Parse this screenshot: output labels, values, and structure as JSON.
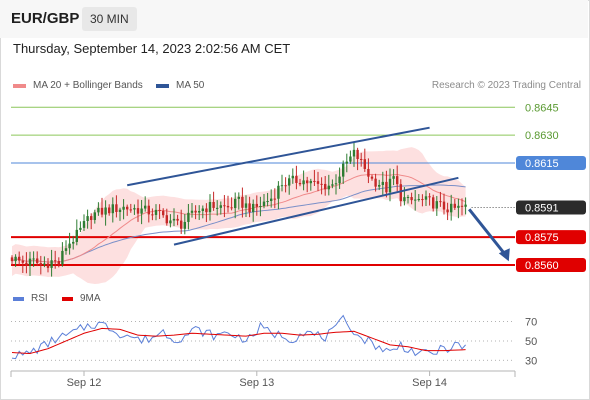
{
  "header": {
    "symbol": "EUR/GBP",
    "interval": "30 MIN"
  },
  "datetime": "Thursday, September 14, 2023 2:02:56 AM CET",
  "legend": {
    "ma20": {
      "label": "MA 20 + Bollinger Bands",
      "color": "#f08a8a"
    },
    "ma50": {
      "label": "MA 50",
      "color": "#2f5597"
    }
  },
  "credit": "Research © 2023 Trading Central",
  "rsi_legend": {
    "rsi": {
      "label": "RSI",
      "color": "#5b7fd8"
    },
    "ma": {
      "label": "9MA",
      "color": "#e00000"
    }
  },
  "colors": {
    "resistance": "#8cc65a",
    "pivot": "#4f87d9",
    "support": "#e00000",
    "channel": "#2f5597",
    "bull": "#2e7d32",
    "bear": "#c62828",
    "band": "#fde0e0"
  },
  "chart_data": [
    {
      "type": "candlestick",
      "x_ticks": [
        "Sep 12",
        "Sep 13",
        "Sep 14"
      ],
      "x_tick_index": [
        20,
        68,
        116
      ],
      "ylim": [
        0.8553,
        0.865
      ],
      "levels": [
        {
          "label": "0.8645",
          "value": 0.8645,
          "kind": "resistance"
        },
        {
          "label": "0.8630",
          "value": 0.863,
          "kind": "resistance"
        },
        {
          "label": "0.8615",
          "value": 0.8615,
          "kind": "pivot"
        },
        {
          "label": "0.8591",
          "value": 0.8591,
          "kind": "last"
        },
        {
          "label": "0.8575",
          "value": 0.8575,
          "kind": "support"
        },
        {
          "label": "0.8560",
          "value": 0.856,
          "kind": "support"
        }
      ],
      "last_price": 0.8591,
      "channel": {
        "upper": [
          [
            32,
            0.8603
          ],
          [
            116,
            0.8634
          ]
        ],
        "lower": [
          [
            45,
            0.8571
          ],
          [
            124,
            0.8607
          ]
        ]
      },
      "forecast_arrow": {
        "from": [
          127,
          0.859
        ],
        "to": [
          138,
          0.8562
        ]
      },
      "anchors": [
        [
          0,
          0.8564
        ],
        [
          2,
          0.8562
        ],
        [
          4,
          0.8561
        ],
        [
          6,
          0.8562
        ],
        [
          8,
          0.856
        ],
        [
          11,
          0.8562
        ],
        [
          13,
          0.8561
        ],
        [
          15,
          0.857
        ],
        [
          18,
          0.8576
        ],
        [
          22,
          0.8587
        ],
        [
          27,
          0.859
        ],
        [
          31,
          0.8591
        ],
        [
          35,
          0.859
        ],
        [
          40,
          0.8588
        ],
        [
          45,
          0.8583
        ],
        [
          47,
          0.8582
        ],
        [
          52,
          0.859
        ],
        [
          56,
          0.8592
        ],
        [
          60,
          0.8591
        ],
        [
          63,
          0.8594
        ],
        [
          67,
          0.859
        ],
        [
          72,
          0.8596
        ],
        [
          75,
          0.8604
        ],
        [
          80,
          0.8606
        ],
        [
          85,
          0.8603
        ],
        [
          89,
          0.8603
        ],
        [
          93,
          0.8615
        ],
        [
          95,
          0.862
        ],
        [
          96,
          0.8618
        ],
        [
          98,
          0.8612
        ],
        [
          100,
          0.8606
        ],
        [
          102,
          0.8604
        ],
        [
          104,
          0.8601
        ],
        [
          106,
          0.8607
        ],
        [
          108,
          0.8597
        ],
        [
          110,
          0.8594
        ],
        [
          112,
          0.8595
        ],
        [
          116,
          0.8594
        ],
        [
          120,
          0.8591
        ],
        [
          122,
          0.859
        ],
        [
          126,
          0.8591
        ]
      ]
    },
    {
      "type": "line",
      "ylim": [
        22,
        80
      ],
      "y_ticks": [
        70,
        50,
        30
      ],
      "series": [
        {
          "name": "RSI",
          "anchors": [
            [
              0,
              36
            ],
            [
              3,
              35
            ],
            [
              6,
              40
            ],
            [
              9,
              45
            ],
            [
              12,
              52
            ],
            [
              15,
              55
            ],
            [
              18,
              60
            ],
            [
              21,
              66
            ],
            [
              24,
              68
            ],
            [
              27,
              64
            ],
            [
              30,
              58
            ],
            [
              33,
              55
            ],
            [
              36,
              50
            ],
            [
              39,
              54
            ],
            [
              42,
              60
            ],
            [
              45,
              52
            ],
            [
              48,
              55
            ],
            [
              51,
              62
            ],
            [
              54,
              58
            ],
            [
              57,
              55
            ],
            [
              60,
              59
            ],
            [
              63,
              54
            ],
            [
              66,
              52
            ],
            [
              69,
              64
            ],
            [
              72,
              58
            ],
            [
              75,
              56
            ],
            [
              78,
              52
            ],
            [
              81,
              60
            ],
            [
              84,
              56
            ],
            [
              87,
              54
            ],
            [
              90,
              62
            ],
            [
              92,
              72
            ],
            [
              94,
              66
            ],
            [
              96,
              55
            ],
            [
              99,
              50
            ],
            [
              102,
              44
            ],
            [
              105,
              38
            ],
            [
              108,
              46
            ],
            [
              111,
              40
            ],
            [
              114,
              36
            ],
            [
              117,
              38
            ],
            [
              120,
              42
            ],
            [
              123,
              45
            ],
            [
              126,
              44
            ]
          ]
        },
        {
          "name": "9MA",
          "anchors": [
            [
              0,
              38
            ],
            [
              5,
              37
            ],
            [
              10,
              42
            ],
            [
              15,
              50
            ],
            [
              20,
              58
            ],
            [
              25,
              63
            ],
            [
              30,
              62
            ],
            [
              35,
              56
            ],
            [
              40,
              55
            ],
            [
              45,
              56
            ],
            [
              50,
              58
            ],
            [
              55,
              57
            ],
            [
              60,
              56
            ],
            [
              65,
              55
            ],
            [
              70,
              58
            ],
            [
              75,
              58
            ],
            [
              80,
              56
            ],
            [
              85,
              57
            ],
            [
              90,
              59
            ],
            [
              95,
              60
            ],
            [
              100,
              53
            ],
            [
              105,
              46
            ],
            [
              110,
              44
            ],
            [
              115,
              40
            ],
            [
              120,
              40
            ],
            [
              126,
              41
            ]
          ]
        }
      ]
    }
  ]
}
